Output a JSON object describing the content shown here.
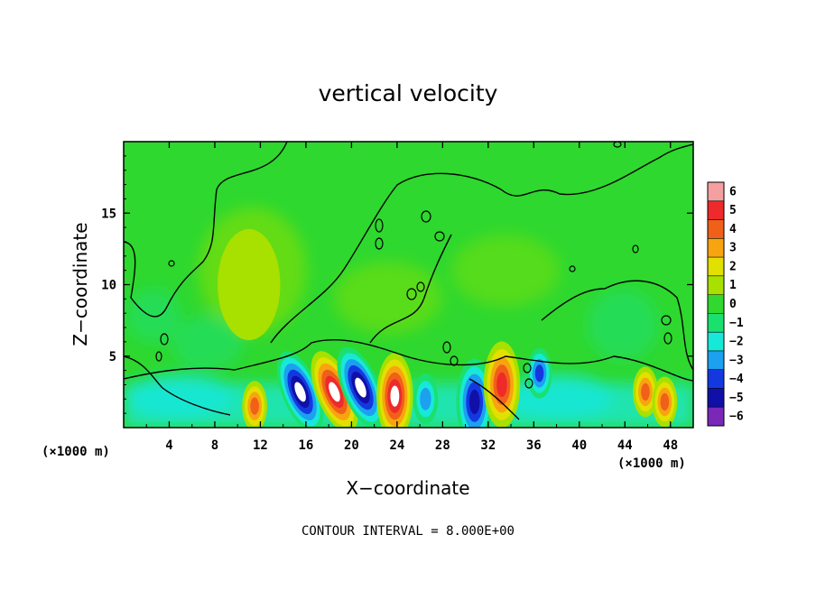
{
  "chart_data": {
    "type": "heatmap",
    "title": "vertical velocity",
    "xlabel": "X−coordinate",
    "ylabel": "Z−coordinate",
    "x_unit_left": "(×1000 m)",
    "x_unit_right": "(×1000 m)",
    "xlim": [
      0,
      50
    ],
    "ylim": [
      0,
      20
    ],
    "x_ticks": [
      4,
      8,
      12,
      16,
      20,
      24,
      28,
      32,
      36,
      40,
      44,
      48
    ],
    "y_ticks": [
      5,
      10,
      15
    ],
    "x_tick_labels": [
      "4",
      "8",
      "12",
      "16",
      "20",
      "24",
      "28",
      "32",
      "36",
      "40",
      "44",
      "48"
    ],
    "y_tick_labels": [
      "5",
      "10",
      "15"
    ],
    "colorbar": {
      "levels": [
        6,
        5,
        4,
        3,
        2,
        1,
        0,
        -1,
        -2,
        -3,
        -4,
        -5,
        -6
      ],
      "labels": [
        "6",
        "5",
        "4",
        "3",
        "2",
        "1",
        "0",
        "−1",
        "−2",
        "−3",
        "−4",
        "−5",
        "−6"
      ],
      "colors": [
        "#f4a0a0",
        "#ee2a2a",
        "#f06018",
        "#f8a410",
        "#e2e000",
        "#a8e000",
        "#30d830",
        "#1ae070",
        "#18e8d8",
        "#1ca0f0",
        "#1438e0",
        "#1010a8",
        "#7a28b8"
      ]
    },
    "cells": [
      {
        "x": 15.5,
        "z": 2.5,
        "w": -6
      },
      {
        "x": 18.5,
        "z": 2.5,
        "w": 6
      },
      {
        "x": 20.8,
        "z": 2.8,
        "w": -6
      },
      {
        "x": 23.8,
        "z": 2.2,
        "w": 6
      },
      {
        "x": 26.5,
        "z": 2.0,
        "w": -3
      },
      {
        "x": 30.8,
        "z": 1.8,
        "w": -5
      },
      {
        "x": 33.2,
        "z": 3.0,
        "w": 5
      },
      {
        "x": 36.5,
        "z": 3.8,
        "w": -4
      },
      {
        "x": 11.5,
        "z": 1.5,
        "w": 4
      },
      {
        "x": 45.8,
        "z": 2.5,
        "w": 4
      },
      {
        "x": 47.5,
        "z": 1.8,
        "w": 4
      },
      {
        "x": 11.0,
        "z": 10.0,
        "w": 1
      }
    ],
    "contour_interval": "CONTOUR INTERVAL = 8.000E+00",
    "grid": false,
    "legend": "right"
  }
}
